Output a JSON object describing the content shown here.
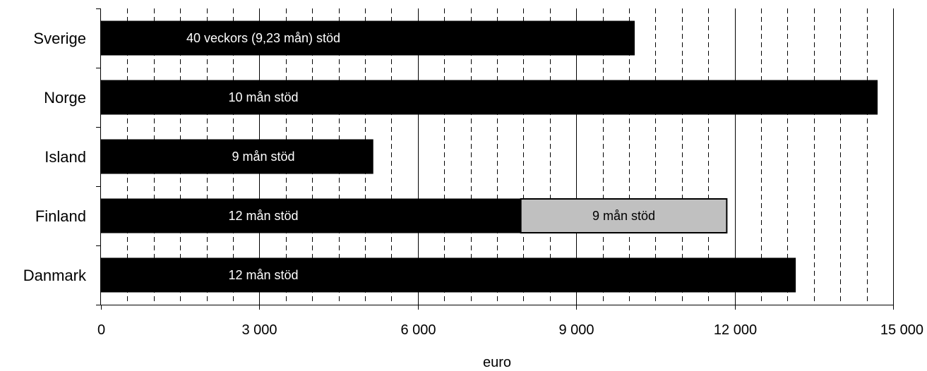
{
  "chart_data": {
    "type": "bar",
    "orientation": "horizontal",
    "stacked": true,
    "categories": [
      "Sverige",
      "Norge",
      "Island",
      "Finland",
      "Danmark"
    ],
    "series": [
      {
        "color": "#000000",
        "label_color": "#ffffff",
        "values": [
          10100,
          14700,
          5150,
          7950,
          13150
        ],
        "bar_labels": [
          "40 veckors (9,23 mån) stöd",
          "10 mån stöd",
          "9 mån stöd",
          "12 mån stöd",
          "12 mån stöd"
        ]
      },
      {
        "color": "#c0c0c0",
        "label_color": "#000000",
        "values": [
          0,
          0,
          0,
          3900,
          0
        ],
        "bar_labels": [
          "",
          "",
          "",
          "9 mån stöd",
          ""
        ]
      }
    ],
    "xlim": [
      0,
      15000
    ],
    "x_ticks": [
      0,
      3000,
      6000,
      9000,
      12000,
      15000
    ],
    "x_tick_labels": [
      "0",
      "3 000",
      "6 000",
      "9 000",
      "12 000",
      "15 000"
    ],
    "xlabel": "euro",
    "ylabel": "",
    "grid": {
      "major": "solid",
      "minor": "dashed",
      "minor_step": 500
    },
    "legend": "none"
  }
}
